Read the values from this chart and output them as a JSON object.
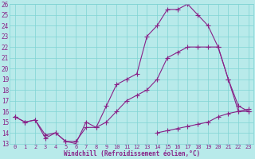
{
  "xlabel": "Windchill (Refroidissement éolien,°C)",
  "background_color": "#b8eaea",
  "line_color": "#882288",
  "x_all": [
    0,
    1,
    2,
    3,
    4,
    5,
    6,
    7,
    8,
    9,
    10,
    11,
    12,
    13,
    14,
    15,
    16,
    17,
    18,
    19,
    20,
    21,
    22,
    23
  ],
  "line1": [
    15.5,
    15.0,
    15.2,
    13.5,
    14.0,
    13.2,
    13.0,
    15.0,
    14.5,
    15.0,
    16.0,
    17.0,
    17.5,
    18.0,
    19.0,
    21.0,
    21.5,
    22.0,
    22.0,
    22.0,
    22.0,
    19.0,
    16.5,
    16.0
  ],
  "line2": [
    15.5,
    15.0,
    15.2,
    13.8,
    14.0,
    13.2,
    13.2,
    14.5,
    14.5,
    16.5,
    18.5,
    19.0,
    19.5,
    23.0,
    24.0,
    25.5,
    25.5,
    26.0,
    25.0,
    24.0,
    22.0,
    19.0,
    16.0,
    16.0
  ],
  "line3": [
    15.5,
    null,
    null,
    null,
    null,
    null,
    null,
    null,
    null,
    null,
    null,
    null,
    null,
    null,
    14.0,
    14.2,
    14.4,
    14.6,
    14.8,
    15.0,
    15.5,
    15.8,
    16.0,
    16.2
  ],
  "ylim": [
    13,
    26
  ],
  "xlim": [
    -0.5,
    23.5
  ],
  "yticks": [
    13,
    14,
    15,
    16,
    17,
    18,
    19,
    20,
    21,
    22,
    23,
    24,
    25,
    26
  ],
  "xticks": [
    0,
    1,
    2,
    3,
    4,
    5,
    6,
    7,
    8,
    9,
    10,
    11,
    12,
    13,
    14,
    15,
    16,
    17,
    18,
    19,
    20,
    21,
    22,
    23
  ],
  "grid_color": "#7fd4d4",
  "marker": "+",
  "markersize": 4,
  "linewidth": 0.8
}
